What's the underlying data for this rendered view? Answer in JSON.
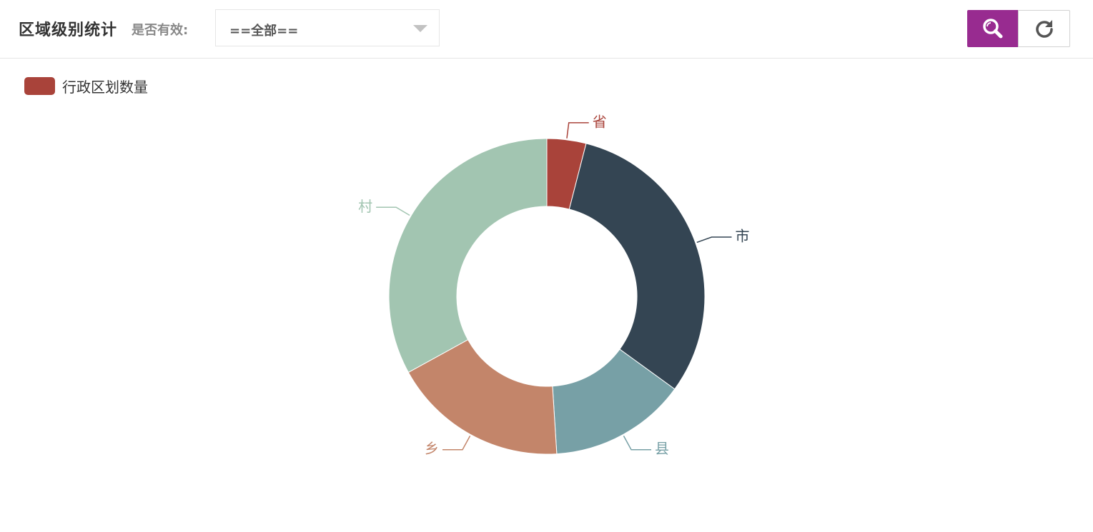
{
  "header": {
    "title": "区域级别统计",
    "filter_label": "是否有效:",
    "select_value": "==全部==",
    "search_icon": "search-icon",
    "refresh_icon": "refresh-icon"
  },
  "colors": {
    "accent": "#982b90",
    "series": [
      "#a9433a",
      "#344553",
      "#77a0a6",
      "#c3856a",
      "#a2c5b1"
    ]
  },
  "chart_data": {
    "type": "pie",
    "variant": "donut",
    "legend": {
      "position": "top-left",
      "entries": [
        "行政区划数量"
      ]
    },
    "series": [
      {
        "name": "行政区划数量",
        "categories": [
          "省",
          "市",
          "县",
          "乡",
          "村"
        ],
        "values": [
          4,
          31,
          14,
          18,
          33
        ]
      }
    ]
  }
}
